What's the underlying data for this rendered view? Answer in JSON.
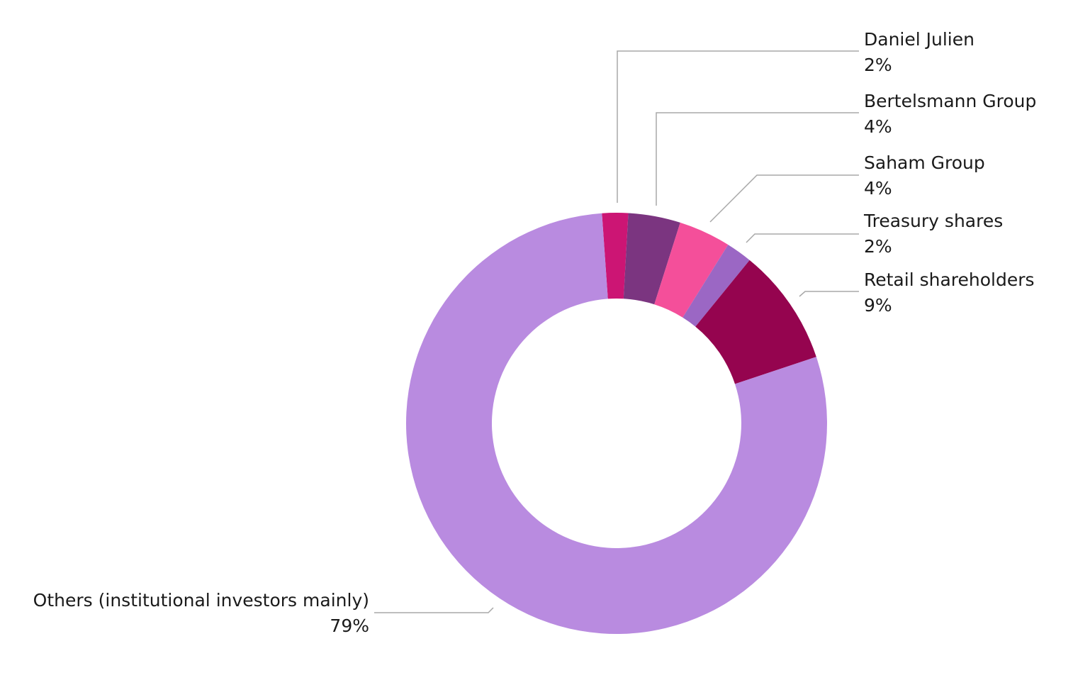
{
  "chart_data": {
    "type": "pie",
    "variant": "donut",
    "title": "",
    "start_angle_deg": -4,
    "center": [
      870,
      597
    ],
    "outer_radius": 297,
    "inner_radius": 176,
    "slices": [
      {
        "label": "Daniel Julien",
        "value": 2,
        "display": "2%",
        "color": "#cc1574"
      },
      {
        "label": "Bertelsmann Group",
        "value": 4,
        "display": "4%",
        "color": "#7b3580"
      },
      {
        "label": "Saham Group",
        "value": 4,
        "display": "4%",
        "color": "#f44f9a"
      },
      {
        "label": "Treasury shares",
        "value": 2,
        "display": "2%",
        "color": "#9b67c4"
      },
      {
        "label": "Retail shareholders",
        "value": 9,
        "display": "9%",
        "color": "#95044f"
      },
      {
        "label": "Others (institutional investors mainly)",
        "value": 79,
        "display": "79%",
        "color": "#b98be0"
      }
    ],
    "legend": "none (leader-line labels)"
  },
  "labels": {
    "daniel": {
      "name": "Daniel Julien",
      "pct": "2%"
    },
    "bertelsmann": {
      "name": "Bertelsmann Group",
      "pct": "4%"
    },
    "saham": {
      "name": "Saham Group",
      "pct": "4%"
    },
    "treasury": {
      "name": "Treasury shares",
      "pct": "2%"
    },
    "retail": {
      "name": "Retail shareholders",
      "pct": "9%"
    },
    "others": {
      "name": "Others (institutional investors mainly)",
      "pct": "79%"
    }
  }
}
